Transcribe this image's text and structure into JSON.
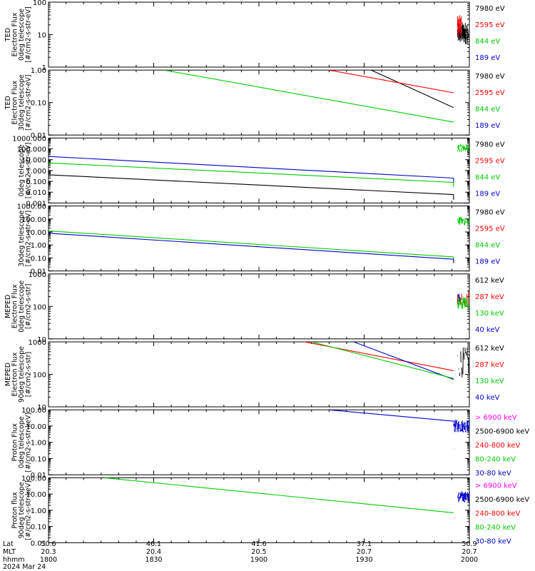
{
  "chart_data": [
    {
      "type": "line",
      "ylabel_lines": [
        "TED",
        "Electron Flux",
        "0deg telescope",
        "[#/cm2-s-str-eV]"
      ],
      "yscale": "log",
      "ylim": [
        1,
        100
      ],
      "yticks": [
        1,
        10,
        100
      ],
      "ytick_labels": [
        "1",
        "10",
        "100"
      ],
      "legend": [
        {
          "label": "7980 eV",
          "color": "#000000"
        },
        {
          "label": "2595 eV",
          "color": "#ff0000"
        },
        {
          "label": "844 eV",
          "color": "#00cc00"
        },
        {
          "label": "189 eV",
          "color": "#0000cc"
        }
      ],
      "series": [
        {
          "color": "#000000",
          "noise": {
            "x": [
              1956.6,
              1959.6
            ],
            "y": [
              5,
              25
            ],
            "n": 40
          }
        },
        {
          "color": "#ff0000",
          "noise": {
            "x": [
              1956.6,
              1957.6
            ],
            "y": [
              8,
              40
            ],
            "n": 12
          }
        }
      ]
    },
    {
      "type": "line",
      "ylabel_lines": [
        "TED",
        "Electron Flux",
        "30deg telescope",
        "[#/cm2-s-str-eV]"
      ],
      "yscale": "log",
      "ylim": [
        0.01,
        1
      ],
      "yticks": [
        0.01,
        0.1,
        1
      ],
      "ytick_labels": [
        "0.01",
        "0.10",
        "1.00"
      ],
      "legend": [
        {
          "label": "7980 eV",
          "color": "#000000"
        },
        {
          "label": "2595 eV",
          "color": "#ff0000"
        },
        {
          "label": "844 eV",
          "color": "#00cc00"
        },
        {
          "label": "189 eV",
          "color": "#0000cc"
        }
      ],
      "series": [
        {
          "color": "#000000",
          "x": [
            1892,
            1955.5
          ],
          "y": [
            1.0,
            0.07
          ]
        },
        {
          "color": "#ff0000",
          "x": [
            1920,
            1955.5
          ],
          "y": [
            1.0,
            0.2
          ]
        },
        {
          "color": "#00cc00",
          "x": [
            1833,
            1955.5
          ],
          "y": [
            1.0,
            0.025
          ]
        }
      ]
    },
    {
      "type": "line",
      "ylabel_lines": [
        "",
        "",
        "0deg telescope",
        "[#/cm2-s-str-eV]"
      ],
      "yscale": "log",
      "ylim": [
        0.001,
        1000
      ],
      "yticks": [
        0.001,
        0.01,
        0.1,
        1,
        10,
        100,
        1000
      ],
      "ytick_labels": [
        "0.001",
        "0.010",
        "0.100",
        "1.000",
        "10.000",
        "100.000",
        "1000.000"
      ],
      "legend": [
        {
          "label": "7980 eV",
          "color": "#000000"
        },
        {
          "label": "2595 eV",
          "color": "#ff0000"
        },
        {
          "label": "844 eV",
          "color": "#00cc00"
        },
        {
          "label": "189 eV",
          "color": "#0000cc"
        }
      ],
      "series": [
        {
          "color": "#0000cc",
          "x": [
            1800,
            1955.5
          ],
          "y": [
            20,
            0.2
          ],
          "tail": [
            0.08
          ]
        },
        {
          "color": "#00cc00",
          "x": [
            1800,
            1955.5
          ],
          "y": [
            5,
            0.08
          ],
          "tail": [
            0.03
          ]
        },
        {
          "color": "#000000",
          "x": [
            1800,
            1955.5
          ],
          "y": [
            0.4,
            0.006
          ],
          "tail": [
            0.002
          ]
        },
        {
          "color": "#00cc00",
          "noise": {
            "x": [
              1956.6,
              1960
            ],
            "y": [
              50,
              300
            ],
            "n": 30
          }
        }
      ]
    },
    {
      "type": "line",
      "ylabel_lines": [
        "",
        "",
        "30deg telescope",
        "[#/cm2-s-str-eV]"
      ],
      "yscale": "log",
      "ylim": [
        0.01,
        1000
      ],
      "yticks": [
        0.01,
        0.1,
        1,
        10,
        100,
        1000
      ],
      "ytick_labels": [
        "0.01",
        "0.10",
        "1.00",
        "10.00",
        "100.00",
        "1000.00"
      ],
      "legend": [
        {
          "label": "7980 eV",
          "color": "#000000"
        },
        {
          "label": "2595 eV",
          "color": "#ff0000"
        },
        {
          "label": "844 eV",
          "color": "#00cc00"
        },
        {
          "label": "189 eV",
          "color": "#0000cc"
        }
      ],
      "series": [
        {
          "color": "#00cc00",
          "x": [
            1800,
            1955.5
          ],
          "y": [
            12,
            0.12
          ],
          "tail": [
            0.05
          ]
        },
        {
          "color": "#0000cc",
          "x": [
            1800,
            1955.5
          ],
          "y": [
            8,
            0.08
          ],
          "tail": [
            0.04
          ]
        },
        {
          "color": "#00cc00",
          "noise": {
            "x": [
              1956.6,
              1960
            ],
            "y": [
              30,
              150
            ],
            "n": 25
          }
        }
      ]
    },
    {
      "type": "line",
      "ylabel_lines": [
        "MEPED",
        "Electron Flux",
        "0deg telescope",
        "[#/cm2-s-str]"
      ],
      "yscale": "log",
      "ylim": [
        10,
        1000
      ],
      "yticks": [
        10,
        100,
        1000
      ],
      "ytick_labels": [
        "10",
        "100",
        "1000"
      ],
      "legend": [
        {
          "label": "612 keV",
          "color": "#000000"
        },
        {
          "label": "287 keV",
          "color": "#ff0000"
        },
        {
          "label": "130 keV",
          "color": "#00cc00"
        },
        {
          "label": "40 keV",
          "color": "#0000cc"
        }
      ],
      "series": [
        {
          "color": "#00cc00",
          "noise": {
            "x": [
              1956.6,
              1960
            ],
            "y": [
              80,
              200
            ],
            "n": 30
          }
        },
        {
          "color": "#ff0000",
          "noise": {
            "x": [
              1956.6,
              1960
            ],
            "y": [
              100,
              300
            ],
            "n": 10
          }
        },
        {
          "color": "#0000cc",
          "noise": {
            "x": [
              1956.6,
              1957.4
            ],
            "y": [
              100,
              250
            ],
            "n": 6
          }
        }
      ]
    },
    {
      "type": "line",
      "ylabel_lines": [
        "MEPED",
        "Electron Flux",
        "90deg telescope",
        "[#/cm2-s-str]"
      ],
      "yscale": "log",
      "ylim": [
        10,
        1000
      ],
      "yticks": [
        10,
        100,
        1000
      ],
      "ytick_labels": [
        "10",
        "100",
        "1000"
      ],
      "legend": [
        {
          "label": "612 keV",
          "color": "#000000"
        },
        {
          "label": "287 keV",
          "color": "#ff0000"
        },
        {
          "label": "130 keV",
          "color": "#00cc00"
        },
        {
          "label": "40 keV",
          "color": "#0000cc"
        }
      ],
      "series": [
        {
          "color": "#ff0000",
          "x": [
            1873,
            1955.5
          ],
          "y": [
            1000,
            130
          ]
        },
        {
          "color": "#0000cc",
          "x": [
            1887,
            1955.5
          ],
          "y": [
            1000,
            70
          ]
        },
        {
          "color": "#00cc00",
          "x": [
            1875,
            1955.5
          ],
          "y": [
            1000,
            75
          ]
        },
        {
          "color": "#000000",
          "noise": {
            "x": [
              1956.6,
              1960
            ],
            "y": [
              80,
              700
            ],
            "n": 12
          }
        }
      ]
    },
    {
      "type": "line",
      "ylabel_lines": [
        "",
        "Proton Flux",
        "0deg telescope",
        "[#/cm2-s-str-keV]"
      ],
      "yscale": "log",
      "ylim": [
        0.01,
        100
      ],
      "yticks": [
        0.01,
        0.1,
        1,
        10,
        100
      ],
      "ytick_labels": [
        "0.01",
        "0.10",
        "1.00",
        "10.00",
        "100.00"
      ],
      "legend": [
        {
          "label": "> 6900 keV",
          "color": "#ff00ff"
        },
        {
          "label": "2500-6900 keV",
          "color": "#000000"
        },
        {
          "label": "240-800 keV",
          "color": "#ff0000"
        },
        {
          "label": "80-240 keV",
          "color": "#00cc00"
        },
        {
          "label": "30-80 keV",
          "color": "#0000cc"
        }
      ],
      "series": [
        {
          "color": "#0000cc",
          "x": [
            1920,
            1955.5
          ],
          "y": [
            100,
            20
          ]
        },
        {
          "color": "#0000cc",
          "noise": {
            "x": [
              1955.5,
              1960
            ],
            "y": [
              4,
              25
            ],
            "n": 40
          }
        },
        {
          "color": "#00cc00",
          "noise": {
            "x": [
              1955.8,
              1956.0
            ],
            "y": [
              0.4,
              0.45
            ],
            "n": 1
          }
        }
      ]
    },
    {
      "type": "line",
      "ylabel_lines": [
        "",
        "Proton flux",
        "90deg telescope",
        "[#/cm2-s-str-keV]"
      ],
      "yscale": "log",
      "ylim": [
        0.01,
        100
      ],
      "yticks": [
        0.01,
        0.1,
        1,
        10,
        100
      ],
      "ytick_labels": [
        "0.01",
        "0.10",
        "1.00",
        "10.00",
        "100.00"
      ],
      "legend": [
        {
          "label": "> 6900 keV",
          "color": "#ff00ff"
        },
        {
          "label": "2500-6900 keV",
          "color": "#000000"
        },
        {
          "label": "240-800 keV",
          "color": "#ff0000"
        },
        {
          "label": "80-240 keV",
          "color": "#00cc00"
        },
        {
          "label": "30-80 keV",
          "color": "#0000cc"
        }
      ],
      "series": [
        {
          "color": "#00cc00",
          "x": [
            1816,
            1955.5
          ],
          "y": [
            100,
            0.7
          ]
        },
        {
          "color": "#0000cc",
          "noise": {
            "x": [
              1956.6,
              1960
            ],
            "y": [
              3,
              15
            ],
            "n": 35
          }
        },
        {
          "color": "#ff0000",
          "noise": {
            "x": [
              1955.8,
              1956.0
            ],
            "y": [
              0.3,
              0.35
            ],
            "n": 1
          }
        }
      ]
    }
  ],
  "xaxis": {
    "xlim": [
      1800,
      2000
    ],
    "row_labels": [
      "Lat",
      "MLT",
      "hhmm",
      "2024 Mar 24"
    ],
    "ticks": [
      {
        "x": 1800,
        "lat": "50.6",
        "mlt": "20.3",
        "hhmm": "1800"
      },
      {
        "x": 1830,
        "lat": "46.1",
        "mlt": "20.4",
        "hhmm": "1830"
      },
      {
        "x": 1900,
        "lat": "41.6",
        "mlt": "20.5",
        "hhmm": "1900"
      },
      {
        "x": 1930,
        "lat": "37.1",
        "mlt": "20.7",
        "hhmm": "1930"
      },
      {
        "x": 2000,
        "lat": "50.9",
        "mlt": "20.7",
        "hhmm": "2000"
      }
    ]
  }
}
